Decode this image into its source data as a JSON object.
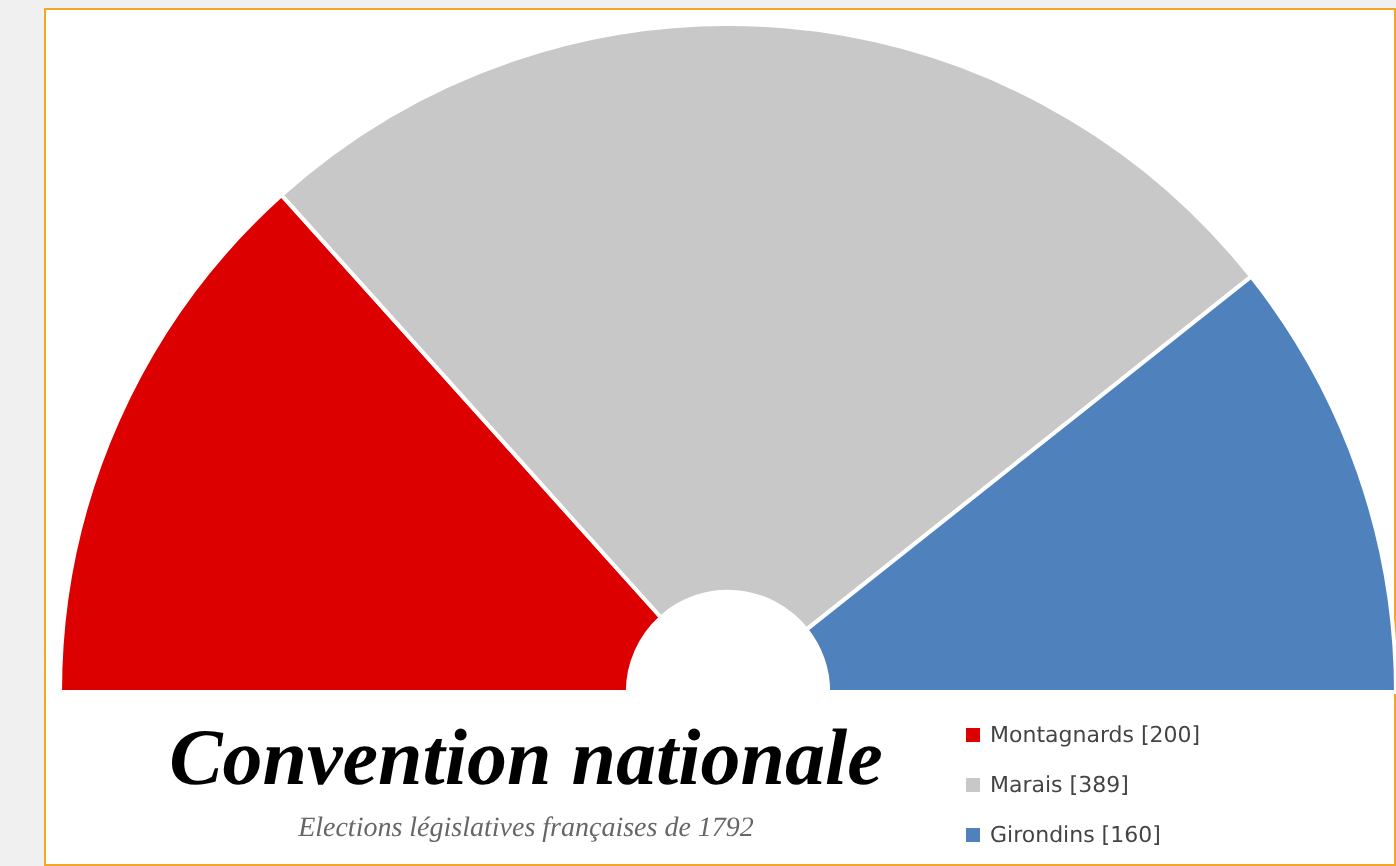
{
  "chart_data": {
    "type": "donut",
    "title": "Convention nationale",
    "subtitle": "Elections législatives françaises de 1792",
    "categories": [
      "Montagnards [200]",
      "Marais [389]",
      "Girondins [160]"
    ],
    "values": [
      200,
      389,
      160
    ],
    "colors": [
      "#dd0000",
      "#c8c8c8",
      "#4f81bd"
    ],
    "legend": "bottom right"
  }
}
